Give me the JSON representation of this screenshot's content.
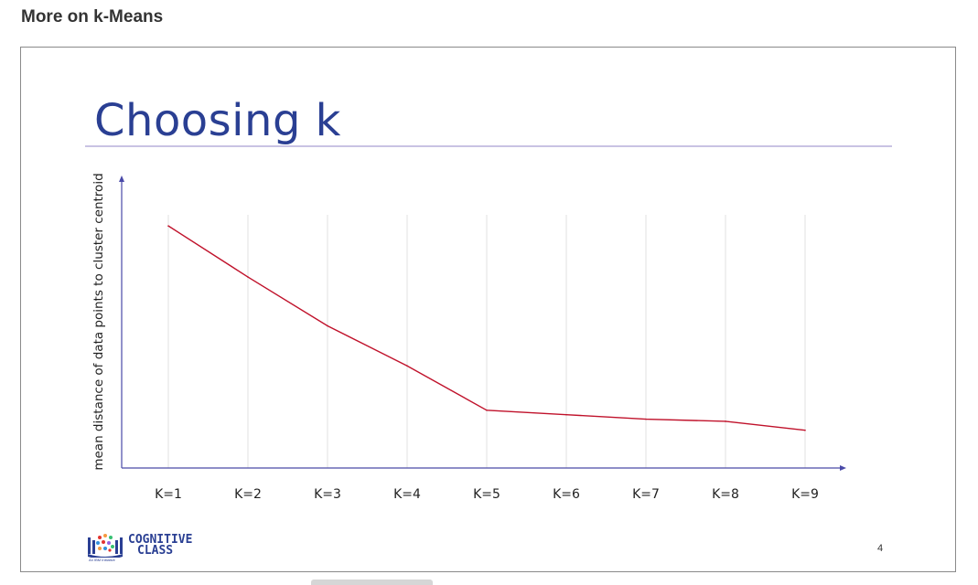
{
  "page": {
    "heading": "More on k-Means"
  },
  "slide": {
    "title": "Choosing k",
    "page_number": "4",
    "logo": {
      "line1": "COGNITIVE",
      "line2": "CLASS",
      "tagline": "An IBM Initiative",
      "icon": "books-logo-icon"
    },
    "colors": {
      "title": "#2a3f93",
      "rule": "#c9c3e3",
      "line": "#c0122b",
      "axis": "#4a4aa8",
      "grid": "#e2e2e2"
    }
  },
  "chart_data": {
    "type": "line",
    "title": "Choosing k",
    "xlabel": "",
    "ylabel": "mean distance of data points to cluster centroid",
    "categories": [
      "K=1",
      "K=2",
      "K=3",
      "K=4",
      "K=5",
      "K=6",
      "K=7",
      "K=8",
      "K=9"
    ],
    "series": [
      {
        "values": [
          100,
          77,
          55,
          37,
          17,
          15,
          13,
          12,
          8
        ]
      }
    ],
    "ylim": [
      -9,
      105
    ],
    "grid": "vertical",
    "y_ticks_labeled": false
  }
}
